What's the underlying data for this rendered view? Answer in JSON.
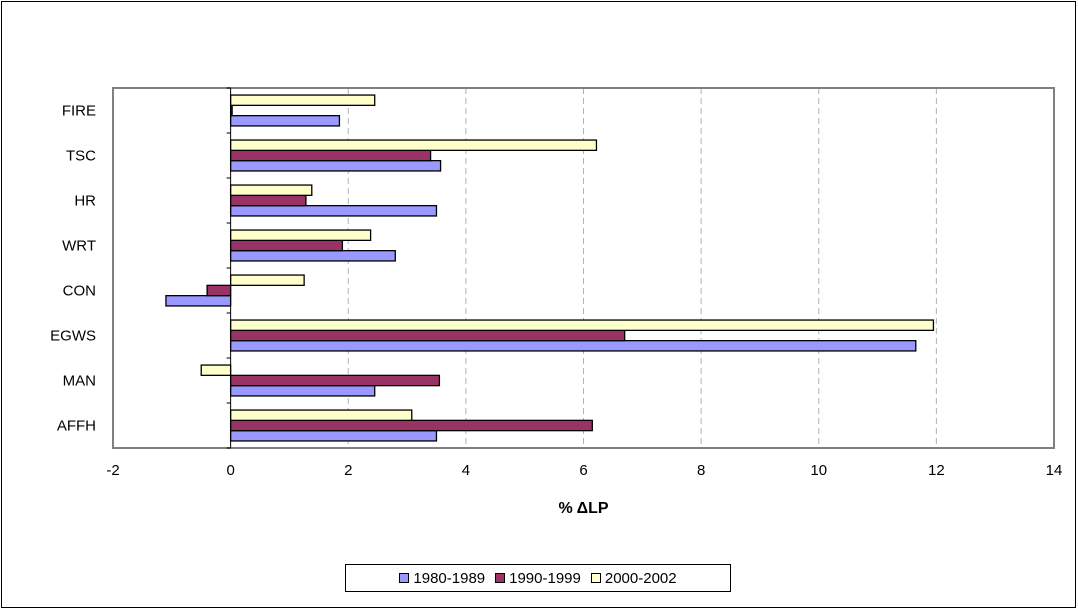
{
  "chart_data": {
    "type": "bar",
    "orientation": "horizontal",
    "categories": [
      "FIRE",
      "TSC",
      "HR",
      "WRT",
      "CON",
      "EGWS",
      "MAN",
      "AFFH"
    ],
    "series": [
      {
        "name": "1980-1989",
        "color": "#9999ff",
        "values": [
          1.85,
          3.57,
          3.5,
          2.8,
          -1.1,
          11.65,
          2.45,
          3.5
        ]
      },
      {
        "name": "1990-1999",
        "color": "#993366",
        "values": [
          0.0,
          3.4,
          1.28,
          1.9,
          -0.4,
          6.7,
          3.55,
          6.15
        ]
      },
      {
        "name": "2000-2002",
        "color": "#ffffcc",
        "values": [
          2.45,
          6.22,
          1.38,
          2.38,
          1.25,
          11.95,
          -0.5,
          3.08
        ]
      }
    ],
    "xlabel": "% ΔLP",
    "ylabel": "",
    "xlim": [
      -2,
      14
    ],
    "xticks": [
      "-2",
      "0",
      "2",
      "4",
      "6",
      "8",
      "10",
      "12",
      "14"
    ],
    "grid": "vertical dashed",
    "legend_position": "bottom"
  }
}
